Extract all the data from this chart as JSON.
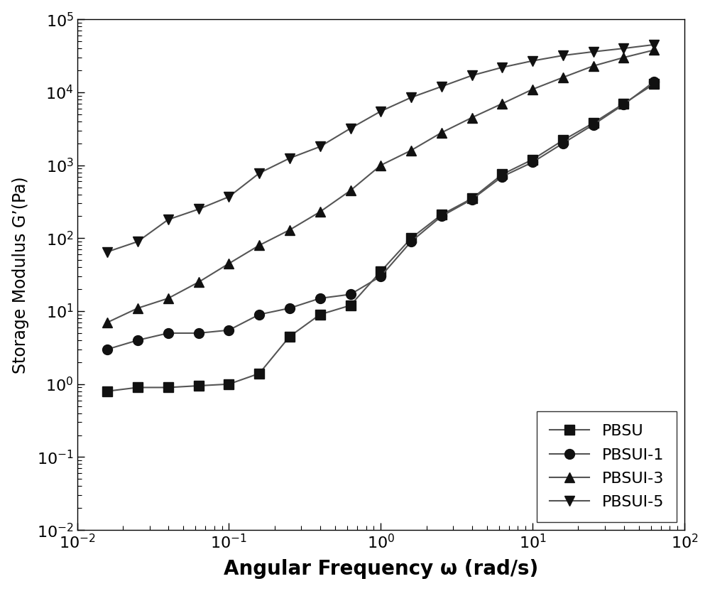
{
  "title": "",
  "xlabel": "Angular Frequency ω (rad/s)",
  "ylabel": "Storage Modulus G’(Pa)",
  "xlim": [
    0.01,
    100
  ],
  "ylim": [
    0.01,
    100000
  ],
  "background_color": "#ffffff",
  "line_color": "#555555",
  "series": [
    {
      "label": "PBSU",
      "marker": "s",
      "x": [
        0.0158,
        0.0251,
        0.0398,
        0.0631,
        0.1,
        0.1585,
        0.2512,
        0.3981,
        0.631,
        1.0,
        1.585,
        2.512,
        3.981,
        6.31,
        10.0,
        15.85,
        25.12,
        39.81,
        63.1
      ],
      "y": [
        0.8,
        0.9,
        0.9,
        0.95,
        1.0,
        1.4,
        4.5,
        9.0,
        12.0,
        35.0,
        100.0,
        210.0,
        350.0,
        750.0,
        1200.0,
        2200.0,
        3800.0,
        7000.0,
        13000.0
      ]
    },
    {
      "label": "PBSUI-1",
      "marker": "o",
      "x": [
        0.0158,
        0.0251,
        0.0398,
        0.0631,
        0.1,
        0.1585,
        0.2512,
        0.3981,
        0.631,
        1.0,
        1.585,
        2.512,
        3.981,
        6.31,
        10.0,
        15.85,
        25.12,
        39.81,
        63.1
      ],
      "y": [
        3.0,
        4.0,
        5.0,
        5.0,
        5.5,
        9.0,
        11.0,
        15.0,
        17.0,
        30.0,
        90.0,
        200.0,
        340.0,
        700.0,
        1100.0,
        2000.0,
        3600.0,
        6800.0,
        14000.0
      ]
    },
    {
      "label": "PBSUI-3",
      "marker": "^",
      "x": [
        0.0158,
        0.0251,
        0.0398,
        0.0631,
        0.1,
        0.1585,
        0.2512,
        0.3981,
        0.631,
        1.0,
        1.585,
        2.512,
        3.981,
        6.31,
        10.0,
        15.85,
        25.12,
        39.81,
        63.1
      ],
      "y": [
        7.0,
        11.0,
        15.0,
        25.0,
        45.0,
        80.0,
        130.0,
        230.0,
        450.0,
        1000.0,
        1600.0,
        2800.0,
        4500.0,
        7000.0,
        11000.0,
        16000.0,
        23000.0,
        30000.0,
        38000.0
      ]
    },
    {
      "label": "PBSUI-5",
      "marker": "v",
      "x": [
        0.0158,
        0.0251,
        0.0398,
        0.0631,
        0.1,
        0.1585,
        0.2512,
        0.3981,
        0.631,
        1.0,
        1.585,
        2.512,
        3.981,
        6.31,
        10.0,
        15.85,
        25.12,
        39.81,
        63.1
      ],
      "y": [
        65.0,
        90.0,
        180.0,
        250.0,
        370.0,
        780.0,
        1250.0,
        1800.0,
        3200.0,
        5500.0,
        8500.0,
        12000.0,
        17000.0,
        22000.0,
        27000.0,
        32000.0,
        36000.0,
        40000.0,
        45000.0
      ]
    }
  ],
  "xlabel_fontsize": 20,
  "ylabel_fontsize": 17,
  "tick_fontsize": 16,
  "legend_fontsize": 16,
  "marker_size": 10,
  "line_width": 1.5,
  "legend_loc": "lower right"
}
